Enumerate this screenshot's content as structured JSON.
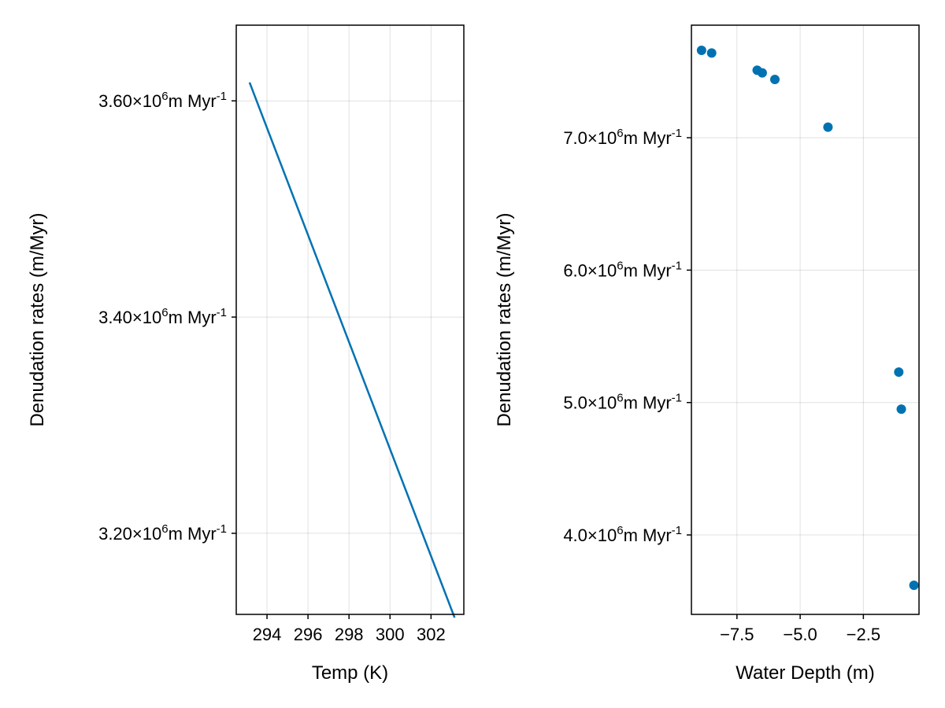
{
  "chart_data": [
    {
      "type": "line",
      "xlabel": "Temp (K)",
      "ylabel": "Denudation rates (m/Myr)",
      "color": "#0072b2",
      "grid": true,
      "xlim": [
        292.5,
        303.6
      ],
      "ylim": [
        3125000,
        3670000
      ],
      "xticks": [
        294,
        296,
        298,
        300,
        302
      ],
      "xtick_labels": [
        "294",
        "296",
        "298",
        "300",
        "302"
      ],
      "yticks": [
        3200000,
        3400000,
        3600000
      ],
      "ytick_labels": [
        {
          "mant": "3.20×10",
          "exp": "6",
          "unit": "m Myr",
          "unit_exp": "-1"
        },
        {
          "mant": "3.40×10",
          "exp": "6",
          "unit": "m Myr",
          "unit_exp": "-1"
        },
        {
          "mant": "3.60×10",
          "exp": "6",
          "unit": "m Myr",
          "unit_exp": "-1"
        }
      ],
      "x": [
        293.15,
        303.15
      ],
      "y": [
        3617000,
        3122000
      ]
    },
    {
      "type": "scatter",
      "xlabel": "Water Depth (m)",
      "ylabel": "Denudation rates (m/Myr)",
      "color": "#0072b2",
      "grid": true,
      "xlim": [
        -9.3,
        -0.3
      ],
      "ylim": [
        3400000,
        7850000
      ],
      "xticks": [
        -7.5,
        -5.0,
        -2.5
      ],
      "xtick_labels": [
        "−7.5",
        "−5.0",
        "−2.5"
      ],
      "yticks": [
        4000000,
        5000000,
        6000000,
        7000000
      ],
      "ytick_labels": [
        {
          "mant": "4.0×10",
          "exp": "6",
          "unit": "m Myr",
          "unit_exp": "-1"
        },
        {
          "mant": "5.0×10",
          "exp": "6",
          "unit": "m Myr",
          "unit_exp": "-1"
        },
        {
          "mant": "6.0×10",
          "exp": "6",
          "unit": "m Myr",
          "unit_exp": "-1"
        },
        {
          "mant": "7.0×10",
          "exp": "6",
          "unit": "m Myr",
          "unit_exp": "-1"
        }
      ],
      "x": [
        -8.9,
        -8.5,
        -6.7,
        -6.5,
        -6.0,
        -3.9,
        -1.1,
        -1.0,
        -0.5
      ],
      "y": [
        7660000,
        7640000,
        7510000,
        7490000,
        7440000,
        7080000,
        5230000,
        4950000,
        3620000
      ]
    }
  ]
}
